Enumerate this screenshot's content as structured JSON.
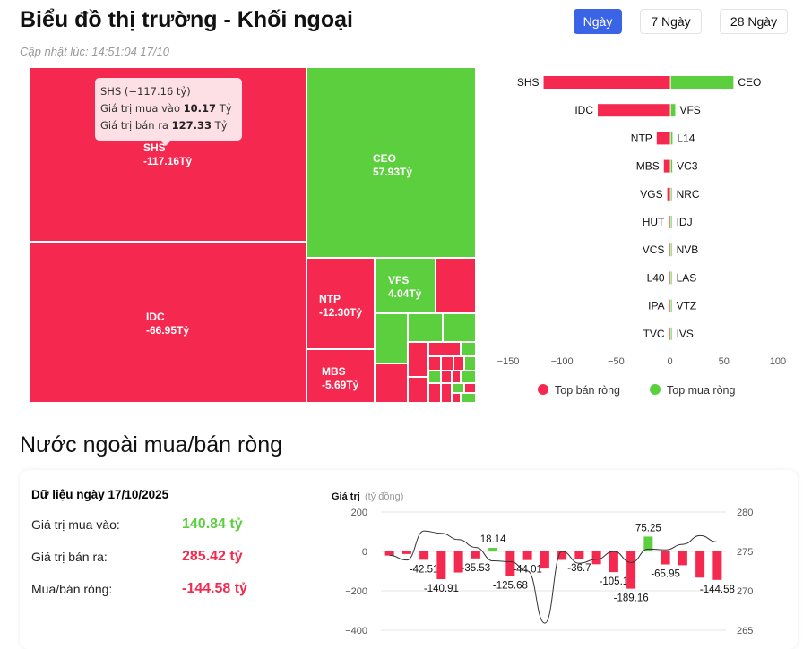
{
  "header": {
    "title": "Biểu đồ thị trường - Khối ngoại",
    "updated": "Cập nhật lúc: 14:51:04 17/10",
    "tabs": [
      {
        "label": "Ngày",
        "active": true
      },
      {
        "label": "7 Ngày",
        "active": false
      },
      {
        "label": "28 Ngày",
        "active": false
      }
    ]
  },
  "colors": {
    "sell": "#f5294f",
    "buy": "#5ccf3f",
    "accent": "#3b63e6"
  },
  "treemap": {
    "cells": [
      {
        "code": "SHS",
        "value": "-117.16Tỷ",
        "side": "sell"
      },
      {
        "code": "IDC",
        "value": "-66.95Tỷ",
        "side": "sell"
      },
      {
        "code": "CEO",
        "value": "57.93Tỷ",
        "side": "buy"
      },
      {
        "code": "NTP",
        "value": "-12.30Tỷ",
        "side": "sell"
      },
      {
        "code": "MBS",
        "value": "-5.69Tỷ",
        "side": "sell"
      },
      {
        "code": "VFS",
        "value": "4.04Tỷ",
        "side": "buy"
      }
    ],
    "tooltip": {
      "title": "SHS (−117.16 tỷ)",
      "buy_label": "Giá trị mua vào",
      "buy_value": "10.17",
      "sell_label": "Giá trị bán ra",
      "sell_value": "127.33",
      "unit": "Tỷ"
    }
  },
  "chart_data": [
    {
      "type": "bar",
      "orientation": "horizontal",
      "xlim": [
        -150,
        100
      ],
      "xticks": [
        "−150",
        "−100",
        "−50",
        "0",
        "50",
        "100"
      ],
      "legend": {
        "placement": "bottom",
        "entries": [
          "Top bán ròng",
          "Top mua ròng"
        ]
      },
      "sell": [
        {
          "code": "SHS",
          "value": -117.16
        },
        {
          "code": "IDC",
          "value": -66.95
        },
        {
          "code": "NTP",
          "value": -12.3
        },
        {
          "code": "MBS",
          "value": -5.69
        },
        {
          "code": "VGS",
          "value": -2.5
        },
        {
          "code": "HUT",
          "value": -1
        },
        {
          "code": "VCS",
          "value": -1
        },
        {
          "code": "L40",
          "value": -0.5
        },
        {
          "code": "IPA",
          "value": -0.3
        },
        {
          "code": "TVC",
          "value": -0.1
        }
      ],
      "buy": [
        {
          "code": "CEO",
          "value": 57.93
        },
        {
          "code": "VFS",
          "value": 4.04
        },
        {
          "code": "L14",
          "value": 1.5
        },
        {
          "code": "VC3",
          "value": 1.3
        },
        {
          "code": "NRC",
          "value": 0.3
        },
        {
          "code": "IDJ",
          "value": 0.2
        },
        {
          "code": "NVB",
          "value": 0.2
        },
        {
          "code": "LAS",
          "value": 0.1
        },
        {
          "code": "VTZ",
          "value": 0.1
        },
        {
          "code": "IVS",
          "value": 0.05
        }
      ]
    },
    {
      "type": "bar+line",
      "ylabel": "Giá trị",
      "yunit": "(tỷ đồng)",
      "ylim": [
        -400,
        200
      ],
      "yticks": [
        "200",
        "0",
        "−200",
        "−400"
      ],
      "y2lim": [
        265,
        280
      ],
      "y2ticks": [
        "280",
        "275",
        "270",
        "265"
      ],
      "bars": [
        -21,
        -13,
        -42.51,
        -140.91,
        -107,
        -35.53,
        18.14,
        -125.68,
        -44.01,
        -87,
        -43,
        -36.7,
        -65,
        -105.1,
        -189.16,
        75.25,
        -65.95,
        -70,
        -133,
        -144.58
      ],
      "labels": [
        "",
        "",
        "-42.51",
        "-140.91",
        "",
        "-35.53",
        "18.14",
        "-125.68",
        "-44.01",
        "",
        "",
        "-36.7",
        "",
        "-105.1",
        "-189.16",
        "75.25",
        "-65.95",
        "",
        "",
        "-144.58"
      ],
      "line": [
        274.5,
        273.9,
        277.6,
        277.3,
        276.5,
        275.5,
        273.8,
        273.7,
        272.5,
        265.9,
        275,
        273.5,
        274,
        275,
        273.6,
        275.3,
        275.2,
        275.9,
        277,
        276.2
      ]
    }
  ],
  "summary": {
    "date_title": "Dữ liệu ngày 17/10/2025",
    "rows": [
      {
        "label": "Giá trị mua vào:",
        "value": "140.84 tỷ",
        "side": "buy"
      },
      {
        "label": "Giá trị bán ra:",
        "value": "285.42 tỷ",
        "side": "sell"
      },
      {
        "label": "Mua/bán ròng:",
        "value": "-144.58 tỷ",
        "side": "sell"
      }
    ]
  }
}
